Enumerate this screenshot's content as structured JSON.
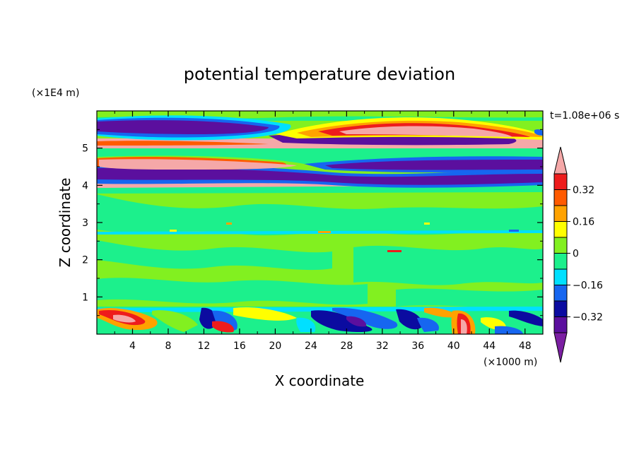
{
  "chart_data": {
    "type": "heatmap",
    "title": "potential temperature deviation",
    "xlabel": "X coordinate",
    "ylabel": "Z coordinate",
    "x_unit_label": "(×1000 m)",
    "y_unit_label": "(×1E4 m)",
    "time_label": "t=1.08e+06 s",
    "xlim": [
      0,
      50
    ],
    "ylim": [
      0,
      6
    ],
    "x_ticks": [
      4,
      8,
      12,
      16,
      20,
      24,
      28,
      32,
      36,
      40,
      44,
      48
    ],
    "x_tick_labels": [
      "4",
      "8",
      "12",
      "16",
      "20",
      "24",
      "28",
      "32",
      "36",
      "40",
      "44",
      "48"
    ],
    "y_ticks": [
      1,
      2,
      3,
      4,
      5
    ],
    "y_tick_labels": [
      "1",
      "2",
      "3",
      "4",
      "5"
    ],
    "colorbar": {
      "levels": [
        -0.4,
        -0.32,
        -0.24,
        -0.16,
        -0.08,
        0,
        0.08,
        0.16,
        0.24,
        0.32,
        0.4
      ],
      "colors": [
        "#7b1fa2",
        "#5b0f9e",
        "#0b0ba0",
        "#1666f0",
        "#00e0ff",
        "#1cf08c",
        "#82f020",
        "#ffff00",
        "#ffa200",
        "#ff5a00",
        "#ee1c1c",
        "#f5a8a8"
      ],
      "tick_values": [
        0.32,
        0.16,
        0,
        -0.16,
        -0.32
      ],
      "tick_labels": [
        "0.32",
        "0.16",
        "0",
        "−0.16",
        "−0.32"
      ]
    },
    "field_bands": [
      {
        "z_range": [
          0,
          0.8
        ],
        "description_value": "mixed strong anomalies, -0.4 to 0.4"
      },
      {
        "z_range": [
          0.8,
          3.9
        ],
        "description_value": "near zero, -0.08 to 0.08"
      },
      {
        "z_range": [
          3.9,
          6
        ],
        "description_value": "layered strong anomalies, -0.4 to 0.4"
      }
    ]
  }
}
